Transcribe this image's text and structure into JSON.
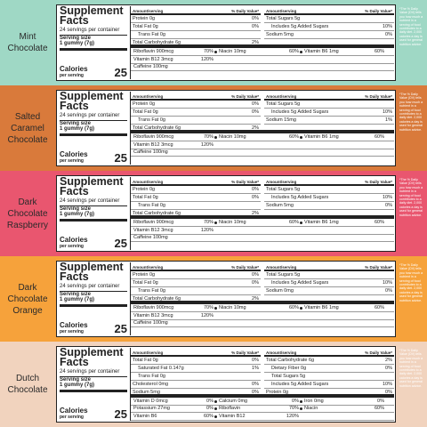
{
  "common": {
    "title": "Supplement Facts",
    "servings": "24 servings per container",
    "serving_size_label": "Serving size",
    "serving_size": "1 gummy (7g)",
    "calories_label": "Calories",
    "calories_sub": "per serving",
    "calories": 25,
    "amount_header": "Amount/serving",
    "dv_header": "% Daily Value*",
    "dv_note": "*The % Daily Value (DV) tells you how much a nutrient in a serving of food contributes to a daily diet. 2,000 calories a day is used for general nutrition advice."
  },
  "panels": [
    {
      "flavor": "Mint Chocolate",
      "color": "#9fd8c5",
      "left_rows": [
        {
          "label": "Protein 0g",
          "dv": "0%"
        },
        {
          "label": "Total Fat 0g",
          "dv": "0%"
        },
        {
          "label": "Trans Fat 0g",
          "indent": true
        },
        {
          "label": "Total Carbohydrate 6g",
          "dv": "2%"
        }
      ],
      "right_rows": [
        {
          "label": "Total Sugars 5g"
        },
        {
          "label": "Includes 5g Added Sugars",
          "dv": "10%",
          "indent": true
        },
        {
          "label": "Sodium 5mg",
          "dv": "0%"
        }
      ],
      "vitamin_rows": [
        [
          {
            "label": "Riboflavin 900mcg",
            "dv": "70%"
          },
          {
            "label": "Niacin 10mg",
            "dv": "60%"
          },
          {
            "label": "Vitamin B6 1mg",
            "dv": "60%"
          }
        ],
        [
          {
            "label": "Vitamin B12 3mcg",
            "dv": "120%"
          }
        ],
        [
          {
            "label": "Caffeine 100mg"
          }
        ]
      ]
    },
    {
      "flavor": "Salted Caramel Chocolate",
      "color": "#d97a3b",
      "left_rows": [
        {
          "label": "Protein 0g",
          "dv": "0%"
        },
        {
          "label": "Total Fat 0g",
          "dv": "0%"
        },
        {
          "label": "Trans Fat 0g",
          "indent": true
        },
        {
          "label": "Total Carbohydrate 6g",
          "dv": "2%"
        }
      ],
      "right_rows": [
        {
          "label": "Total Sugars 5g"
        },
        {
          "label": "Includes 5g Added Sugars",
          "dv": "10%",
          "indent": true
        },
        {
          "label": "Sodium 15mg",
          "dv": "1%"
        }
      ],
      "vitamin_rows": [
        [
          {
            "label": "Riboflavin 900mcg",
            "dv": "70%"
          },
          {
            "label": "Niacin 10mg",
            "dv": "60%"
          },
          {
            "label": "Vitamin B6 1mg",
            "dv": "60%"
          }
        ],
        [
          {
            "label": "Vitamin B12 3mcg",
            "dv": "120%"
          }
        ],
        [
          {
            "label": "Caffeine 100mg"
          }
        ]
      ]
    },
    {
      "flavor": "Dark Chocolate Raspberry",
      "color": "#e9566f",
      "left_rows": [
        {
          "label": "Protein 0g",
          "dv": "0%"
        },
        {
          "label": "Total Fat 0g",
          "dv": "0%"
        },
        {
          "label": "Trans Fat 0g",
          "indent": true
        },
        {
          "label": "Total Carbohydrate 6g",
          "dv": "2%"
        }
      ],
      "right_rows": [
        {
          "label": "Total Sugars 5g"
        },
        {
          "label": "Includes 5g Added Sugars",
          "dv": "10%",
          "indent": true
        },
        {
          "label": "Sodium 5mg",
          "dv": "0%"
        }
      ],
      "vitamin_rows": [
        [
          {
            "label": "Riboflavin 900mcg",
            "dv": "70%"
          },
          {
            "label": "Niacin 10mg",
            "dv": "60%"
          },
          {
            "label": "Vitamin B6 1mg",
            "dv": "60%"
          }
        ],
        [
          {
            "label": "Vitamin B12 3mcg",
            "dv": "120%"
          }
        ],
        [
          {
            "label": "Caffeine 100mg"
          }
        ]
      ]
    },
    {
      "flavor": "Dark Chocolate Orange",
      "color": "#f6a23b",
      "left_rows": [
        {
          "label": "Protein 0g",
          "dv": "0%"
        },
        {
          "label": "Total Fat 0g",
          "dv": "0%"
        },
        {
          "label": "Trans Fat 0g",
          "indent": true
        },
        {
          "label": "Total Carbohydrate 6g",
          "dv": "2%"
        }
      ],
      "right_rows": [
        {
          "label": "Total Sugars 5g"
        },
        {
          "label": "Includes 5g Added Sugars",
          "dv": "10%",
          "indent": true
        },
        {
          "label": "Sodium 0mg",
          "dv": "0%"
        }
      ],
      "vitamin_rows": [
        [
          {
            "label": "Riboflavin 900mcg",
            "dv": "70%"
          },
          {
            "label": "Niacin 10mg",
            "dv": "60%"
          },
          {
            "label": "Vitamin B6 1mg",
            "dv": "60%"
          }
        ],
        [
          {
            "label": "Vitamin B12 3mcg",
            "dv": "120%"
          }
        ],
        [
          {
            "label": "Caffeine 100mg"
          }
        ]
      ]
    },
    {
      "flavor": "Dutch Chocolate",
      "color": "#f1d3be",
      "left_rows": [
        {
          "label": "Total Fat 0g",
          "dv": "0%"
        },
        {
          "label": "Saturated Fat 0.147g",
          "dv": "1%",
          "indent": true
        },
        {
          "label": "Trans Fat 0g",
          "indent": true
        },
        {
          "label": "Cholesterol 0mg",
          "dv": "0%"
        },
        {
          "label": "Sodium 5mg",
          "dv": "0%"
        }
      ],
      "right_rows": [
        {
          "label": "Total Carbohydrate 6g",
          "dv": "2%"
        },
        {
          "label": "Dietary Fiber 0g",
          "dv": "0%",
          "indent": true
        },
        {
          "label": "Total Sugars 5g",
          "indent": true
        },
        {
          "label": "Includes 5g Added Sugars",
          "dv": "10%",
          "indent": true
        },
        {
          "label": "Protein 0g",
          "dv": "0%"
        }
      ],
      "vitamin_rows": [
        [
          {
            "label": "Vitamin D 0mcg",
            "dv": "0%"
          },
          {
            "label": "Calcium 0mg",
            "dv": "0%"
          },
          {
            "label": "Iron 0mg",
            "dv": "0%"
          }
        ],
        [
          {
            "label": "Potassium 27mg",
            "dv": "0%"
          },
          {
            "label": "Riboflavin",
            "dv": "70%"
          },
          {
            "label": "Niacin",
            "dv": "60%"
          }
        ],
        [
          {
            "label": "Vitamin B6",
            "dv": "60%"
          },
          {
            "label": "Vitamin B12",
            "dv": "120%"
          }
        ]
      ]
    }
  ]
}
